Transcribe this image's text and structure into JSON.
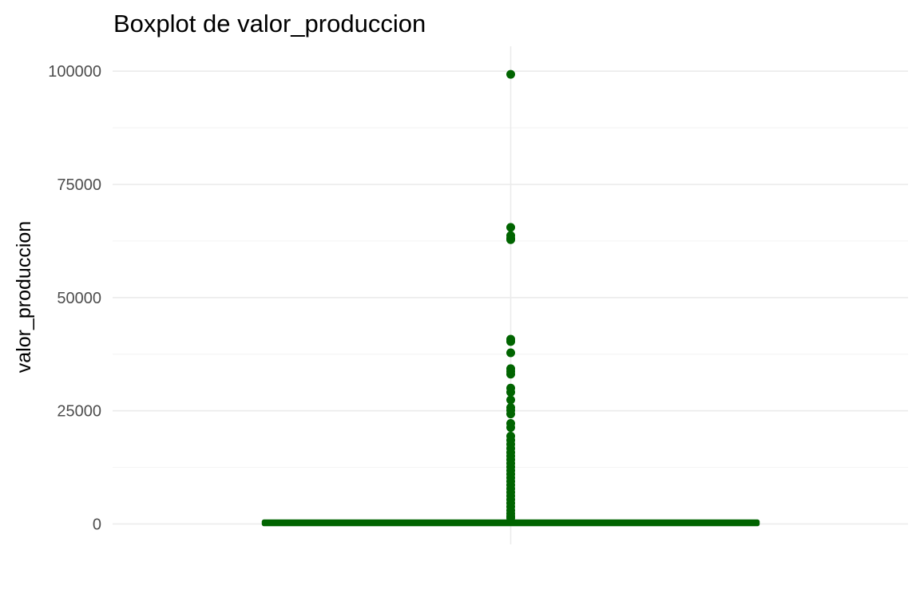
{
  "chart_data": {
    "type": "boxplot",
    "title": "Boxplot de valor_produccion",
    "ylabel": "valor_produccion",
    "xlabel": "",
    "ylim": [
      -4500,
      105500
    ],
    "yticks": [
      0,
      25000,
      50000,
      75000,
      100000
    ],
    "yticklabels": [
      "0",
      "25000",
      "50000",
      "75000",
      "100000"
    ],
    "grid": true,
    "color": "#006400",
    "box": {
      "min": 0,
      "q1": 50,
      "median": 150,
      "q3": 450,
      "max": 1050
    },
    "outliers": [
      99300,
      65500,
      63700,
      63100,
      62800,
      40800,
      40300,
      37800,
      34300,
      33700,
      33100,
      30000,
      29100,
      27400,
      25700,
      25100,
      24300,
      22200,
      21300,
      19400,
      18500,
      17600,
      16700,
      15800,
      15000,
      14200,
      13400,
      12600,
      11800,
      11000,
      10200,
      9400,
      8600,
      7800,
      7000,
      6200,
      5400,
      4600,
      3800,
      3000,
      2300,
      1700,
      1300
    ]
  }
}
